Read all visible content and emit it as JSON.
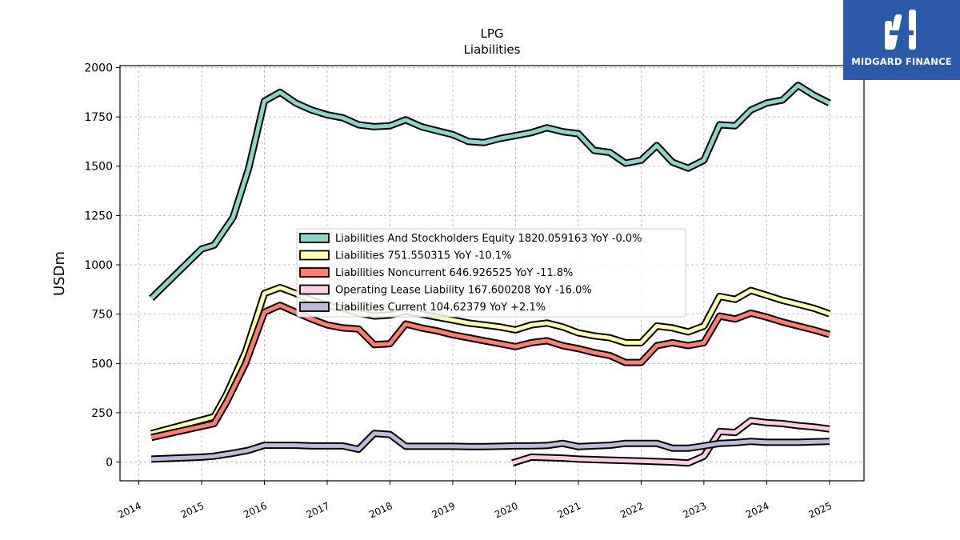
{
  "chart_data": {
    "type": "line",
    "title": "LPG",
    "subtitle": "Liabilities",
    "ylabel": "USDm",
    "xlabel": "",
    "xlim": [
      2013.7,
      2025.55
    ],
    "ylim": [
      -95,
      2010
    ],
    "x_ticks": [
      "2014",
      "2015",
      "2016",
      "2017",
      "2018",
      "2019",
      "2020",
      "2021",
      "2022",
      "2023",
      "2024",
      "2025"
    ],
    "y_ticks": [
      "0",
      "250",
      "500",
      "750",
      "1000",
      "1250",
      "1500",
      "1750",
      "2000"
    ],
    "grid": true,
    "legend_position": "center",
    "series": [
      {
        "name": "Liabilities And Stockholders Equity  1820.059163 YoY -0.0%",
        "color": "#8dd3c7",
        "points": [
          [
            2014.2,
            830
          ],
          [
            2015.0,
            1080
          ],
          [
            2015.2,
            1100
          ],
          [
            2015.5,
            1240
          ],
          [
            2015.75,
            1490
          ],
          [
            2016.0,
            1830
          ],
          [
            2016.25,
            1875
          ],
          [
            2016.5,
            1820
          ],
          [
            2016.75,
            1785
          ],
          [
            2017.0,
            1760
          ],
          [
            2017.25,
            1745
          ],
          [
            2017.5,
            1710
          ],
          [
            2017.75,
            1700
          ],
          [
            2018.0,
            1705
          ],
          [
            2018.25,
            1735
          ],
          [
            2018.5,
            1700
          ],
          [
            2018.75,
            1680
          ],
          [
            2019.0,
            1660
          ],
          [
            2019.25,
            1625
          ],
          [
            2019.5,
            1620
          ],
          [
            2019.75,
            1640
          ],
          [
            2020.0,
            1655
          ],
          [
            2020.25,
            1670
          ],
          [
            2020.5,
            1695
          ],
          [
            2020.75,
            1675
          ],
          [
            2021.0,
            1665
          ],
          [
            2021.25,
            1580
          ],
          [
            2021.5,
            1570
          ],
          [
            2021.75,
            1515
          ],
          [
            2022.0,
            1530
          ],
          [
            2022.25,
            1605
          ],
          [
            2022.5,
            1520
          ],
          [
            2022.75,
            1490
          ],
          [
            2023.0,
            1530
          ],
          [
            2023.25,
            1710
          ],
          [
            2023.5,
            1705
          ],
          [
            2023.75,
            1785
          ],
          [
            2024.0,
            1820
          ],
          [
            2024.25,
            1835
          ],
          [
            2024.5,
            1910
          ],
          [
            2024.75,
            1860
          ],
          [
            2025.0,
            1820
          ]
        ]
      },
      {
        "name": "Liabilities  751.550315 YoY -10.1%",
        "color": "#ffffb3",
        "points": [
          [
            2014.2,
            145
          ],
          [
            2015.2,
            230
          ],
          [
            2015.4,
            345
          ],
          [
            2015.7,
            560
          ],
          [
            2016.0,
            855
          ],
          [
            2016.25,
            885
          ],
          [
            2016.5,
            855
          ],
          [
            2016.75,
            820
          ],
          [
            2017.0,
            795
          ],
          [
            2017.25,
            780
          ],
          [
            2017.5,
            755
          ],
          [
            2017.75,
            740
          ],
          [
            2018.0,
            745
          ],
          [
            2018.25,
            765
          ],
          [
            2018.5,
            750
          ],
          [
            2018.75,
            735
          ],
          [
            2019.0,
            720
          ],
          [
            2019.25,
            705
          ],
          [
            2019.5,
            695
          ],
          [
            2019.75,
            685
          ],
          [
            2020.0,
            670
          ],
          [
            2020.25,
            695
          ],
          [
            2020.5,
            705
          ],
          [
            2020.75,
            685
          ],
          [
            2021.0,
            655
          ],
          [
            2021.25,
            640
          ],
          [
            2021.5,
            630
          ],
          [
            2021.75,
            605
          ],
          [
            2022.0,
            605
          ],
          [
            2022.25,
            690
          ],
          [
            2022.5,
            680
          ],
          [
            2022.75,
            660
          ],
          [
            2023.0,
            690
          ],
          [
            2023.25,
            840
          ],
          [
            2023.5,
            825
          ],
          [
            2023.75,
            870
          ],
          [
            2024.0,
            845
          ],
          [
            2024.25,
            820
          ],
          [
            2024.5,
            800
          ],
          [
            2024.75,
            780
          ],
          [
            2025.0,
            752
          ]
        ]
      },
      {
        "name": "Liabilities Noncurrent  646.926525 YoY -11.8%",
        "color": "#fb8072",
        "points": [
          [
            2014.2,
            125
          ],
          [
            2015.2,
            195
          ],
          [
            2015.4,
            305
          ],
          [
            2015.7,
            500
          ],
          [
            2016.0,
            760
          ],
          [
            2016.25,
            795
          ],
          [
            2016.5,
            760
          ],
          [
            2016.75,
            725
          ],
          [
            2017.0,
            695
          ],
          [
            2017.25,
            680
          ],
          [
            2017.5,
            675
          ],
          [
            2017.75,
            595
          ],
          [
            2018.0,
            600
          ],
          [
            2018.25,
            700
          ],
          [
            2018.5,
            680
          ],
          [
            2018.75,
            665
          ],
          [
            2019.0,
            645
          ],
          [
            2019.25,
            630
          ],
          [
            2019.5,
            615
          ],
          [
            2019.75,
            600
          ],
          [
            2020.0,
            585
          ],
          [
            2020.25,
            605
          ],
          [
            2020.5,
            615
          ],
          [
            2020.75,
            590
          ],
          [
            2021.0,
            575
          ],
          [
            2021.25,
            555
          ],
          [
            2021.5,
            540
          ],
          [
            2021.75,
            505
          ],
          [
            2022.0,
            505
          ],
          [
            2022.25,
            590
          ],
          [
            2022.5,
            605
          ],
          [
            2022.75,
            590
          ],
          [
            2023.0,
            605
          ],
          [
            2023.25,
            740
          ],
          [
            2023.5,
            725
          ],
          [
            2023.75,
            755
          ],
          [
            2024.0,
            735
          ],
          [
            2024.25,
            710
          ],
          [
            2024.5,
            690
          ],
          [
            2024.75,
            670
          ],
          [
            2025.0,
            647
          ]
        ]
      },
      {
        "name": "Operating Lease Liability  167.600208 YoY -16.0%",
        "color": "#fccde5",
        "points": [
          [
            2019.95,
            -5
          ],
          [
            2020.25,
            25
          ],
          [
            2020.75,
            20
          ],
          [
            2021.0,
            15
          ],
          [
            2021.5,
            10
          ],
          [
            2022.0,
            5
          ],
          [
            2022.5,
            0
          ],
          [
            2022.75,
            -5
          ],
          [
            2023.0,
            30
          ],
          [
            2023.25,
            155
          ],
          [
            2023.5,
            150
          ],
          [
            2023.75,
            210
          ],
          [
            2024.0,
            200
          ],
          [
            2024.25,
            195
          ],
          [
            2024.5,
            185
          ],
          [
            2024.75,
            178
          ],
          [
            2025.0,
            168
          ]
        ]
      },
      {
        "name": "Liabilities Current  104.62379 YoY +2.1%",
        "color": "#bebada",
        "points": [
          [
            2014.2,
            15
          ],
          [
            2015.0,
            25
          ],
          [
            2015.2,
            30
          ],
          [
            2015.5,
            45
          ],
          [
            2015.75,
            60
          ],
          [
            2016.0,
            85
          ],
          [
            2016.25,
            85
          ],
          [
            2016.5,
            85
          ],
          [
            2016.75,
            82
          ],
          [
            2017.0,
            82
          ],
          [
            2017.25,
            82
          ],
          [
            2017.5,
            65
          ],
          [
            2017.75,
            145
          ],
          [
            2018.0,
            140
          ],
          [
            2018.25,
            80
          ],
          [
            2018.5,
            80
          ],
          [
            2018.75,
            80
          ],
          [
            2019.0,
            80
          ],
          [
            2019.25,
            78
          ],
          [
            2019.5,
            78
          ],
          [
            2019.75,
            80
          ],
          [
            2020.0,
            82
          ],
          [
            2020.25,
            82
          ],
          [
            2020.5,
            84
          ],
          [
            2020.75,
            95
          ],
          [
            2021.0,
            78
          ],
          [
            2021.25,
            82
          ],
          [
            2021.5,
            85
          ],
          [
            2021.75,
            95
          ],
          [
            2022.0,
            95
          ],
          [
            2022.25,
            95
          ],
          [
            2022.5,
            70
          ],
          [
            2022.75,
            70
          ],
          [
            2023.0,
            82
          ],
          [
            2023.25,
            95
          ],
          [
            2023.5,
            98
          ],
          [
            2023.75,
            105
          ],
          [
            2024.0,
            100
          ],
          [
            2024.25,
            100
          ],
          [
            2024.5,
            100
          ],
          [
            2024.75,
            103
          ],
          [
            2025.0,
            105
          ]
        ]
      }
    ]
  },
  "logo": {
    "text": "MIDGARD FINANCE",
    "color": "#2c5aa8"
  }
}
